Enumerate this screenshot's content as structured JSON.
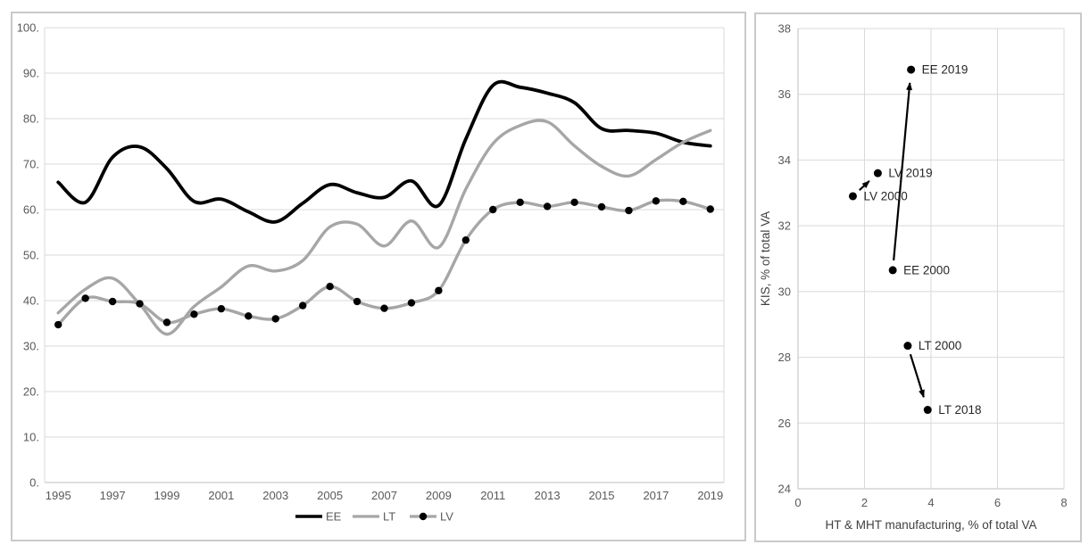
{
  "page": {
    "background": "#ffffff"
  },
  "styles": {
    "grid_color": "#d9d9d9",
    "axis_color": "#bfbfbf",
    "tick_text_color": "#595959",
    "axis_title_color": "#404040",
    "point_label_color": "#262626",
    "panel_border_color": "#c9c9c9",
    "ee_color": "#000000",
    "lt_color": "#a6a6a6",
    "lv_line_color": "#a6a6a6",
    "lv_marker_color": "#000000",
    "arrow_color": "#000000"
  },
  "chart_data": [
    {
      "type": "line",
      "title": "",
      "x": [
        1995,
        1996,
        1997,
        1998,
        1999,
        2000,
        2001,
        2002,
        2003,
        2004,
        2005,
        2006,
        2007,
        2008,
        2009,
        2010,
        2011,
        2012,
        2013,
        2014,
        2015,
        2016,
        2017,
        2018,
        2019
      ],
      "x_tick_labels": [
        "1995",
        "1997",
        "1999",
        "2001",
        "2003",
        "2005",
        "2007",
        "2009",
        "2011",
        "2013",
        "2015",
        "2017",
        "2019"
      ],
      "y_tick_labels": [
        "0.",
        "10.",
        "20.",
        "30.",
        "40.",
        "50.",
        "60.",
        "70.",
        "80.",
        "90.",
        "100."
      ],
      "ylim": [
        0,
        100
      ],
      "y_tick_step": 10,
      "grid": "horizontal",
      "legend_position": "bottom",
      "series": [
        {
          "name": "EE",
          "color": "#000000",
          "marker": false,
          "values": [
            66.0,
            61.6,
            71.5,
            73.8,
            69.0,
            61.8,
            62.3,
            59.5,
            57.3,
            61.4,
            65.5,
            63.7,
            62.7,
            66.3,
            60.9,
            75.5,
            87.3,
            86.9,
            85.6,
            83.5,
            77.8,
            77.4,
            76.8,
            74.8,
            74.0
          ]
        },
        {
          "name": "LT",
          "color": "#a6a6a6",
          "marker": false,
          "values": [
            37.3,
            42.5,
            44.9,
            39.2,
            32.6,
            38.7,
            43.0,
            47.6,
            46.5,
            48.8,
            56.2,
            56.8,
            52.0,
            57.5,
            51.7,
            64.5,
            74.5,
            78.5,
            79.3,
            74.0,
            69.5,
            67.4,
            71.0,
            74.8,
            77.4
          ]
        },
        {
          "name": "LV",
          "color": "#a6a6a6",
          "marker": true,
          "marker_color": "#000000",
          "values": [
            34.7,
            40.5,
            39.8,
            39.3,
            35.2,
            37.0,
            38.2,
            36.6,
            36.0,
            38.9,
            43.1,
            39.8,
            38.3,
            39.5,
            42.2,
            53.3,
            60.0,
            61.6,
            60.7,
            61.6,
            60.6,
            59.8,
            61.9,
            61.8,
            60.1
          ]
        }
      ]
    },
    {
      "type": "scatter",
      "title": "",
      "xlabel": "HT & MHT manufacturing, % of total VA",
      "ylabel": "KIS, % of total VA",
      "xlim": [
        0,
        8
      ],
      "ylim": [
        24,
        38
      ],
      "x_ticks": [
        "0",
        "2",
        "4",
        "6",
        "8"
      ],
      "y_ticks": [
        "24",
        "26",
        "28",
        "30",
        "32",
        "34",
        "36",
        "38"
      ],
      "grid": "both",
      "points": [
        {
          "label": "EE 2019",
          "x": 3.4,
          "y": 36.75
        },
        {
          "label": "LV 2019",
          "x": 2.4,
          "y": 33.6
        },
        {
          "label": "LV 2000",
          "x": 1.65,
          "y": 32.9
        },
        {
          "label": "EE 2000",
          "x": 2.85,
          "y": 30.65
        },
        {
          "label": "LT 2000",
          "x": 3.3,
          "y": 28.35
        },
        {
          "label": "LT 2018",
          "x": 3.9,
          "y": 26.4
        }
      ],
      "arrows": [
        {
          "from": "LV 2000",
          "to": "LV 2019"
        },
        {
          "from": "EE 2000",
          "to": "EE 2019"
        },
        {
          "from": "LT 2000",
          "to": "LT 2018"
        }
      ]
    }
  ]
}
